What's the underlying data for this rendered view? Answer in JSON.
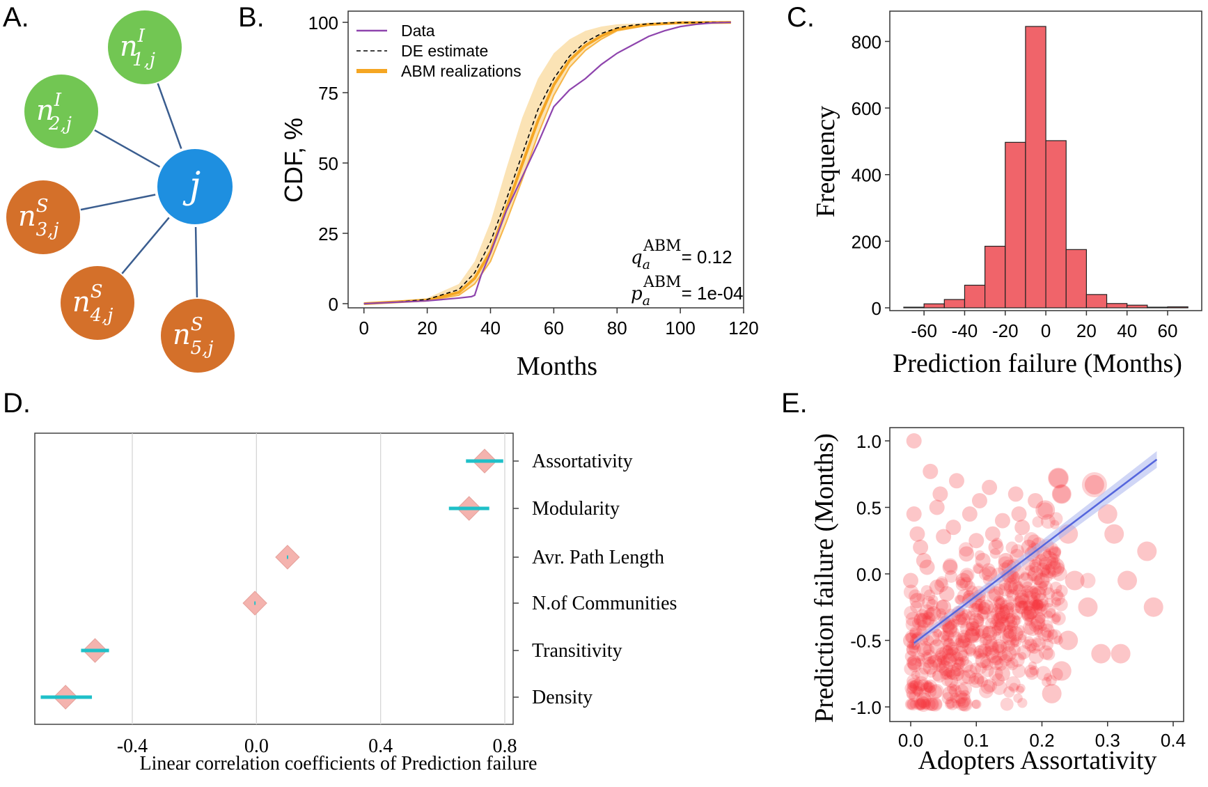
{
  "panel_labels": [
    "A.",
    "B.",
    "C.",
    "D.",
    "E."
  ],
  "colors": {
    "infected": "#72c653",
    "susceptible": "#d4702a",
    "focal": "#1e8fe0",
    "edge": "#3a5d8f",
    "data_line": "#8e44ad",
    "de_line": "#000000",
    "abm": "#f5a623",
    "abm_band": "#fbe3b5",
    "hist_bar": "#f0646a",
    "forest_marker": "#f4b3ae",
    "forest_ci": "#1fc0c8",
    "scatter_point": "#f5333a",
    "fit_line": "#5566dd"
  },
  "panel_a": {
    "nodes": [
      {
        "id": "n1",
        "base": "n",
        "sup": "I",
        "sub": "1,j",
        "kind": "infected"
      },
      {
        "id": "n2",
        "base": "n",
        "sup": "I",
        "sub": "2,j",
        "kind": "infected"
      },
      {
        "id": "n3",
        "base": "n",
        "sup": "S",
        "sub": "3,j",
        "kind": "susceptible"
      },
      {
        "id": "n4",
        "base": "n",
        "sup": "S",
        "sub": "4,j",
        "kind": "susceptible"
      },
      {
        "id": "n5",
        "base": "n",
        "sup": "S",
        "sub": "5,j",
        "kind": "susceptible"
      },
      {
        "id": "j",
        "base": "j",
        "sup": "",
        "sub": "",
        "kind": "focal"
      }
    ]
  },
  "chart_data": [
    {
      "panel": "B",
      "type": "line",
      "xlabel": "Months",
      "ylabel": "CDF, %",
      "xlim": [
        -5,
        120
      ],
      "ylim": [
        0,
        102
      ],
      "xticks": [
        0,
        20,
        40,
        60,
        80,
        100,
        120
      ],
      "yticks": [
        0,
        25,
        50,
        75,
        100
      ],
      "legend": [
        "Data",
        "DE estimate",
        "ABM realizations"
      ],
      "legend_position": "top-left",
      "annotations": [
        {
          "sym": "q",
          "sub": "a",
          "sup": "ABM",
          "text": "= 0.12"
        },
        {
          "sym": "p",
          "sub": "a",
          "sup": "ABM",
          "text": "= 1e-04"
        }
      ],
      "series": [
        {
          "name": "Data",
          "x": [
            0,
            20,
            30,
            34,
            35,
            37,
            40,
            45,
            50,
            55,
            60,
            65,
            70,
            75,
            80,
            85,
            90,
            95,
            100,
            105,
            110,
            116
          ],
          "y": [
            0,
            1,
            2,
            2.5,
            3,
            10,
            18,
            33,
            45,
            57,
            70,
            76,
            80,
            85,
            89,
            92,
            95,
            97,
            98.5,
            99.3,
            99.8,
            100
          ]
        },
        {
          "name": "DE estimate",
          "x": [
            0,
            10,
            20,
            30,
            35,
            40,
            45,
            50,
            55,
            60,
            65,
            70,
            75,
            80,
            85,
            90,
            95,
            100,
            116
          ],
          "y": [
            0,
            0.5,
            1.5,
            5,
            11,
            22,
            37,
            53,
            69,
            80,
            88,
            93,
            96,
            98,
            99,
            99.5,
            99.8,
            99.9,
            100
          ]
        },
        {
          "name": "ABM realizations",
          "x": [
            0,
            20,
            30,
            35,
            40,
            45,
            50,
            55,
            60,
            65,
            70,
            75,
            80,
            90,
            100,
            116
          ],
          "y_low": [
            0,
            1,
            3,
            7,
            15,
            29,
            44,
            60,
            74,
            84,
            90,
            94,
            97,
            99,
            99.8,
            100
          ],
          "y_high": [
            0,
            2,
            7,
            15,
            29,
            48,
            66,
            80,
            89,
            94,
            97,
            98.5,
            99.3,
            99.9,
            100,
            100
          ]
        }
      ]
    },
    {
      "panel": "C",
      "type": "bar",
      "xlabel": "Prediction failure (Months)",
      "ylabel": "Frequency",
      "xlim": [
        -70,
        72
      ],
      "ylim": [
        0,
        870
      ],
      "xticks": [
        -60,
        -40,
        -20,
        0,
        20,
        40,
        60
      ],
      "yticks": [
        0,
        200,
        400,
        600,
        800
      ],
      "bin_edges": [
        -70,
        -60,
        -50,
        -40,
        -30,
        -20,
        -10,
        0,
        10,
        20,
        30,
        40,
        50,
        60,
        70
      ],
      "values": [
        2,
        12,
        25,
        68,
        185,
        497,
        845,
        502,
        175,
        40,
        13,
        8,
        2,
        3
      ]
    },
    {
      "panel": "D",
      "type": "scatter",
      "xlabel": "Linear correlation coefficients of Prediction failure",
      "xlim": [
        -0.72,
        0.83
      ],
      "xticks": [
        -0.4,
        0.0,
        0.4,
        0.8
      ],
      "tick_labels": [
        "-0.4",
        "0.0",
        "0.4",
        "0.8"
      ],
      "grid": true,
      "categories": [
        "Assortativity",
        "Modularity",
        "Avr. Path Length",
        "N.of Communities",
        "Transitivity",
        "Density"
      ],
      "values": [
        0.735,
        0.685,
        0.1,
        -0.005,
        -0.52,
        -0.615
      ],
      "ci_low": [
        0.675,
        0.62,
        0.098,
        -0.007,
        -0.565,
        -0.695
      ],
      "ci_high": [
        0.795,
        0.75,
        0.102,
        -0.003,
        -0.475,
        -0.53
      ]
    },
    {
      "panel": "E",
      "type": "scatter",
      "xlabel": "Adopters Assortativity",
      "ylabel": "Prediction failure (Months)",
      "xlim": [
        -0.02,
        0.41
      ],
      "ylim": [
        -1.07,
        1.1
      ],
      "xticks": [
        0.0,
        0.1,
        0.2,
        0.3,
        0.4
      ],
      "tick_labels_x": [
        "0.0",
        "0.1",
        "0.2",
        "0.3",
        "0.4"
      ],
      "yticks": [
        -1.0,
        -0.5,
        0.0,
        0.5,
        1.0
      ],
      "tick_labels_y": [
        "-1.0",
        "-0.5",
        "0.0",
        "0.5",
        "1.0"
      ],
      "fit_line": {
        "x": [
          0.005,
          0.375
        ],
        "y": [
          -0.52,
          0.86
        ]
      },
      "points": [
        [
          0.005,
          1.0
        ],
        [
          0.28,
          0.67
        ],
        [
          0.225,
          0.72
        ],
        [
          0.23,
          0.6
        ],
        [
          0.205,
          0.48
        ],
        [
          0.21,
          0.1
        ],
        [
          0.3,
          0.45
        ],
        [
          0.31,
          0.3
        ],
        [
          0.36,
          0.17
        ],
        [
          0.37,
          -0.25
        ],
        [
          0.33,
          -0.05
        ],
        [
          0.25,
          -0.05
        ],
        [
          0.27,
          -0.25
        ],
        [
          0.32,
          -0.6
        ],
        [
          0.29,
          -0.6
        ],
        [
          0.24,
          -0.5
        ],
        [
          0.23,
          -0.73
        ],
        [
          0.215,
          -0.9
        ],
        [
          0.02,
          -0.95
        ],
        [
          0.08,
          -0.95
        ],
        [
          0.005,
          0.45
        ],
        [
          0.03,
          0.77
        ],
        [
          0.07,
          0.7
        ],
        [
          0.12,
          0.65
        ],
        [
          0.16,
          0.6
        ],
        [
          0.19,
          0.55
        ],
        [
          0.04,
          0.5
        ],
        [
          0.09,
          0.45
        ],
        [
          0.14,
          0.4
        ],
        [
          0.17,
          0.35
        ],
        [
          0.01,
          0.3
        ],
        [
          0.05,
          0.28
        ],
        [
          0.1,
          0.25
        ],
        [
          0.13,
          0.2
        ],
        [
          0.18,
          0.2
        ],
        [
          0.02,
          0.1
        ],
        [
          0.06,
          0.05
        ],
        [
          0.11,
          0.1
        ],
        [
          0.15,
          0.05
        ],
        [
          0.19,
          0.0
        ],
        [
          0.0,
          -0.05
        ],
        [
          0.04,
          -0.1
        ],
        [
          0.08,
          -0.05
        ],
        [
          0.12,
          0.0
        ],
        [
          0.16,
          -0.1
        ],
        [
          0.2,
          -0.05
        ],
        [
          0.01,
          -0.2
        ],
        [
          0.05,
          -0.25
        ],
        [
          0.09,
          -0.2
        ],
        [
          0.13,
          -0.15
        ],
        [
          0.17,
          -0.2
        ],
        [
          0.02,
          -0.35
        ],
        [
          0.06,
          -0.4
        ],
        [
          0.1,
          -0.35
        ],
        [
          0.14,
          -0.3
        ],
        [
          0.18,
          -0.3
        ],
        [
          0.0,
          -0.5
        ],
        [
          0.04,
          -0.55
        ],
        [
          0.08,
          -0.5
        ],
        [
          0.12,
          -0.45
        ],
        [
          0.16,
          -0.45
        ],
        [
          0.03,
          -0.7
        ],
        [
          0.07,
          -0.75
        ],
        [
          0.11,
          -0.65
        ],
        [
          0.15,
          -0.6
        ],
        [
          0.01,
          -0.85
        ],
        [
          0.06,
          -0.9
        ],
        [
          0.1,
          -0.8
        ],
        [
          0.14,
          -0.75
        ],
        [
          0.025,
          0.05
        ],
        [
          0.055,
          -0.15
        ],
        [
          0.085,
          0.15
        ],
        [
          0.115,
          -0.25
        ],
        [
          0.145,
          0.1
        ],
        [
          0.175,
          -0.05
        ],
        [
          0.035,
          -0.3
        ],
        [
          0.065,
          0.35
        ],
        [
          0.095,
          -0.45
        ],
        [
          0.125,
          0.3
        ],
        [
          0.155,
          -0.35
        ],
        [
          0.185,
          0.15
        ],
        [
          0.015,
          0.2
        ],
        [
          0.045,
          0.6
        ],
        [
          0.075,
          -0.6
        ],
        [
          0.105,
          0.55
        ],
        [
          0.135,
          -0.55
        ],
        [
          0.165,
          0.45
        ],
        [
          0.195,
          -0.15
        ],
        [
          0.22,
          0.05
        ],
        [
          0.24,
          0.3
        ]
      ]
    }
  ]
}
